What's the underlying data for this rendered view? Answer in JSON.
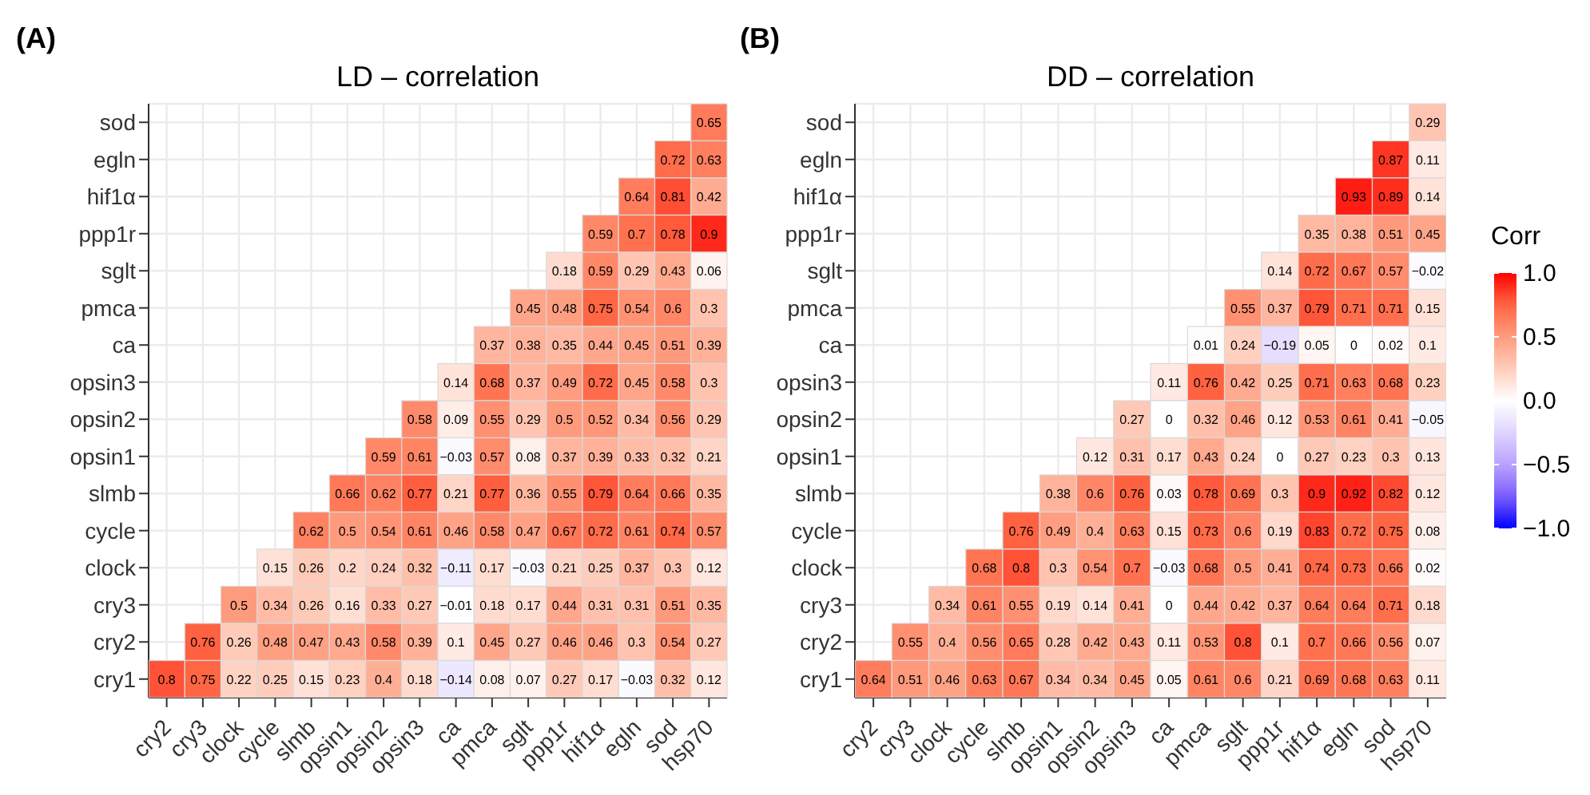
{
  "chart_data": [
    {
      "type": "heatmap",
      "title": "LD – correlation",
      "annotations": [
        "(A)"
      ],
      "grid": true,
      "data_labels": true,
      "categories": [
        "cry2",
        "cry3",
        "clock",
        "cycle",
        "slmb",
        "opsin1",
        "opsin2",
        "opsin3",
        "ca",
        "pmca",
        "sglt",
        "ppp1r",
        "hif1α",
        "egln",
        "sod",
        "hsp70"
      ],
      "y_categories": [
        "sod",
        "egln",
        "hif1α",
        "ppp1r",
        "sglt",
        "pmca",
        "ca",
        "opsin3",
        "opsin2",
        "opsin1",
        "slmb",
        "cycle",
        "clock",
        "cry3",
        "cry2",
        "cry1"
      ],
      "cells": [
        [
          null,
          null,
          null,
          null,
          null,
          null,
          null,
          null,
          null,
          null,
          null,
          null,
          null,
          null,
          null,
          0.65
        ],
        [
          null,
          null,
          null,
          null,
          null,
          null,
          null,
          null,
          null,
          null,
          null,
          null,
          null,
          null,
          0.72,
          0.63
        ],
        [
          null,
          null,
          null,
          null,
          null,
          null,
          null,
          null,
          null,
          null,
          null,
          null,
          null,
          0.64,
          0.81,
          0.42
        ],
        [
          null,
          null,
          null,
          null,
          null,
          null,
          null,
          null,
          null,
          null,
          null,
          null,
          0.59,
          0.7,
          0.78,
          0.9
        ],
        [
          null,
          null,
          null,
          null,
          null,
          null,
          null,
          null,
          null,
          null,
          null,
          0.18,
          0.59,
          0.29,
          0.43,
          0.06
        ],
        [
          null,
          null,
          null,
          null,
          null,
          null,
          null,
          null,
          null,
          null,
          0.45,
          0.48,
          0.75,
          0.54,
          0.6,
          0.3
        ],
        [
          null,
          null,
          null,
          null,
          null,
          null,
          null,
          null,
          null,
          0.37,
          0.38,
          0.35,
          0.44,
          0.45,
          0.51,
          0.39
        ],
        [
          null,
          null,
          null,
          null,
          null,
          null,
          null,
          null,
          0.14,
          0.68,
          0.37,
          0.49,
          0.72,
          0.45,
          0.58,
          0.3
        ],
        [
          null,
          null,
          null,
          null,
          null,
          null,
          null,
          0.58,
          0.09,
          0.55,
          0.29,
          0.5,
          0.52,
          0.34,
          0.56,
          0.29
        ],
        [
          null,
          null,
          null,
          null,
          null,
          null,
          0.59,
          0.61,
          -0.03,
          0.57,
          0.08,
          0.37,
          0.39,
          0.33,
          0.32,
          0.21
        ],
        [
          null,
          null,
          null,
          null,
          null,
          0.66,
          0.62,
          0.77,
          0.21,
          0.77,
          0.36,
          0.55,
          0.79,
          0.64,
          0.66,
          0.35
        ],
        [
          null,
          null,
          null,
          null,
          0.62,
          0.5,
          0.54,
          0.61,
          0.46,
          0.58,
          0.47,
          0.67,
          0.72,
          0.61,
          0.74,
          0.57
        ],
        [
          null,
          null,
          null,
          0.15,
          0.26,
          0.2,
          0.24,
          0.32,
          -0.11,
          0.17,
          -0.03,
          0.21,
          0.25,
          0.37,
          0.3,
          0.12
        ],
        [
          null,
          null,
          0.5,
          0.34,
          0.26,
          0.16,
          0.33,
          0.27,
          -0.01,
          0.18,
          0.17,
          0.44,
          0.31,
          0.31,
          0.51,
          0.35
        ],
        [
          null,
          0.76,
          0.26,
          0.48,
          0.47,
          0.43,
          0.58,
          0.39,
          0.1,
          0.45,
          0.27,
          0.46,
          0.46,
          0.3,
          0.54,
          0.27
        ],
        [
          0.8,
          0.75,
          0.22,
          0.25,
          0.15,
          0.23,
          0.4,
          0.18,
          -0.14,
          0.08,
          0.07,
          0.27,
          0.17,
          -0.03,
          0.32,
          0.12
        ]
      ]
    },
    {
      "type": "heatmap",
      "title": "DD – correlation",
      "annotations": [
        "(B)"
      ],
      "grid": true,
      "data_labels": true,
      "clim": [
        -1,
        1
      ],
      "clabel": "Corr",
      "cticks": [
        {
          "value": 1,
          "label": "1.0"
        },
        {
          "value": 0.5,
          "label": "0.5"
        },
        {
          "value": 0,
          "label": "0.0"
        },
        {
          "value": -0.5,
          "label": "−0.5"
        },
        {
          "value": -1,
          "label": "−1.0"
        }
      ],
      "categories": [
        "cry2",
        "cry3",
        "clock",
        "cycle",
        "slmb",
        "opsin1",
        "opsin2",
        "opsin3",
        "ca",
        "pmca",
        "sglt",
        "ppp1r",
        "hif1α",
        "egln",
        "sod",
        "hsp70"
      ],
      "y_categories": [
        "sod",
        "egln",
        "hif1α",
        "ppp1r",
        "sglt",
        "pmca",
        "ca",
        "opsin3",
        "opsin2",
        "opsin1",
        "slmb",
        "cycle",
        "clock",
        "cry3",
        "cry2",
        "cry1"
      ],
      "cells": [
        [
          null,
          null,
          null,
          null,
          null,
          null,
          null,
          null,
          null,
          null,
          null,
          null,
          null,
          null,
          null,
          0.29
        ],
        [
          null,
          null,
          null,
          null,
          null,
          null,
          null,
          null,
          null,
          null,
          null,
          null,
          null,
          null,
          0.87,
          0.11
        ],
        [
          null,
          null,
          null,
          null,
          null,
          null,
          null,
          null,
          null,
          null,
          null,
          null,
          null,
          0.93,
          0.89,
          0.14
        ],
        [
          null,
          null,
          null,
          null,
          null,
          null,
          null,
          null,
          null,
          null,
          null,
          null,
          0.35,
          0.38,
          0.51,
          0.45
        ],
        [
          null,
          null,
          null,
          null,
          null,
          null,
          null,
          null,
          null,
          null,
          null,
          0.14,
          0.72,
          0.67,
          0.57,
          -0.02
        ],
        [
          null,
          null,
          null,
          null,
          null,
          null,
          null,
          null,
          null,
          null,
          0.55,
          0.37,
          0.79,
          0.71,
          0.71,
          0.15
        ],
        [
          null,
          null,
          null,
          null,
          null,
          null,
          null,
          null,
          null,
          0.01,
          0.24,
          -0.19,
          0.05,
          0,
          0.02,
          0.1
        ],
        [
          null,
          null,
          null,
          null,
          null,
          null,
          null,
          null,
          0.11,
          0.76,
          0.42,
          0.25,
          0.71,
          0.63,
          0.68,
          0.23
        ],
        [
          null,
          null,
          null,
          null,
          null,
          null,
          null,
          0.27,
          0,
          0.32,
          0.46,
          0.12,
          0.53,
          0.61,
          0.41,
          -0.05
        ],
        [
          null,
          null,
          null,
          null,
          null,
          null,
          0.12,
          0.31,
          0.17,
          0.43,
          0.24,
          0,
          0.27,
          0.23,
          0.3,
          0.13
        ],
        [
          null,
          null,
          null,
          null,
          null,
          0.38,
          0.6,
          0.76,
          0.03,
          0.78,
          0.69,
          0.3,
          0.9,
          0.92,
          0.82,
          0.12
        ],
        [
          null,
          null,
          null,
          null,
          0.76,
          0.49,
          0.4,
          0.63,
          0.15,
          0.73,
          0.6,
          0.19,
          0.83,
          0.72,
          0.75,
          0.08
        ],
        [
          null,
          null,
          null,
          0.68,
          0.8,
          0.3,
          0.54,
          0.7,
          -0.03,
          0.68,
          0.5,
          0.41,
          0.74,
          0.73,
          0.66,
          0.02
        ],
        [
          null,
          null,
          0.34,
          0.61,
          0.55,
          0.19,
          0.14,
          0.41,
          0,
          0.44,
          0.42,
          0.37,
          0.64,
          0.64,
          0.71,
          0.18
        ],
        [
          null,
          0.55,
          0.4,
          0.56,
          0.65,
          0.28,
          0.42,
          0.43,
          0.11,
          0.53,
          0.8,
          0.1,
          0.7,
          0.66,
          0.56,
          0.07
        ],
        [
          0.64,
          0.51,
          0.46,
          0.63,
          0.67,
          0.34,
          0.34,
          0.45,
          0.05,
          0.61,
          0.6,
          0.21,
          0.69,
          0.68,
          0.63,
          0.11
        ]
      ]
    }
  ]
}
